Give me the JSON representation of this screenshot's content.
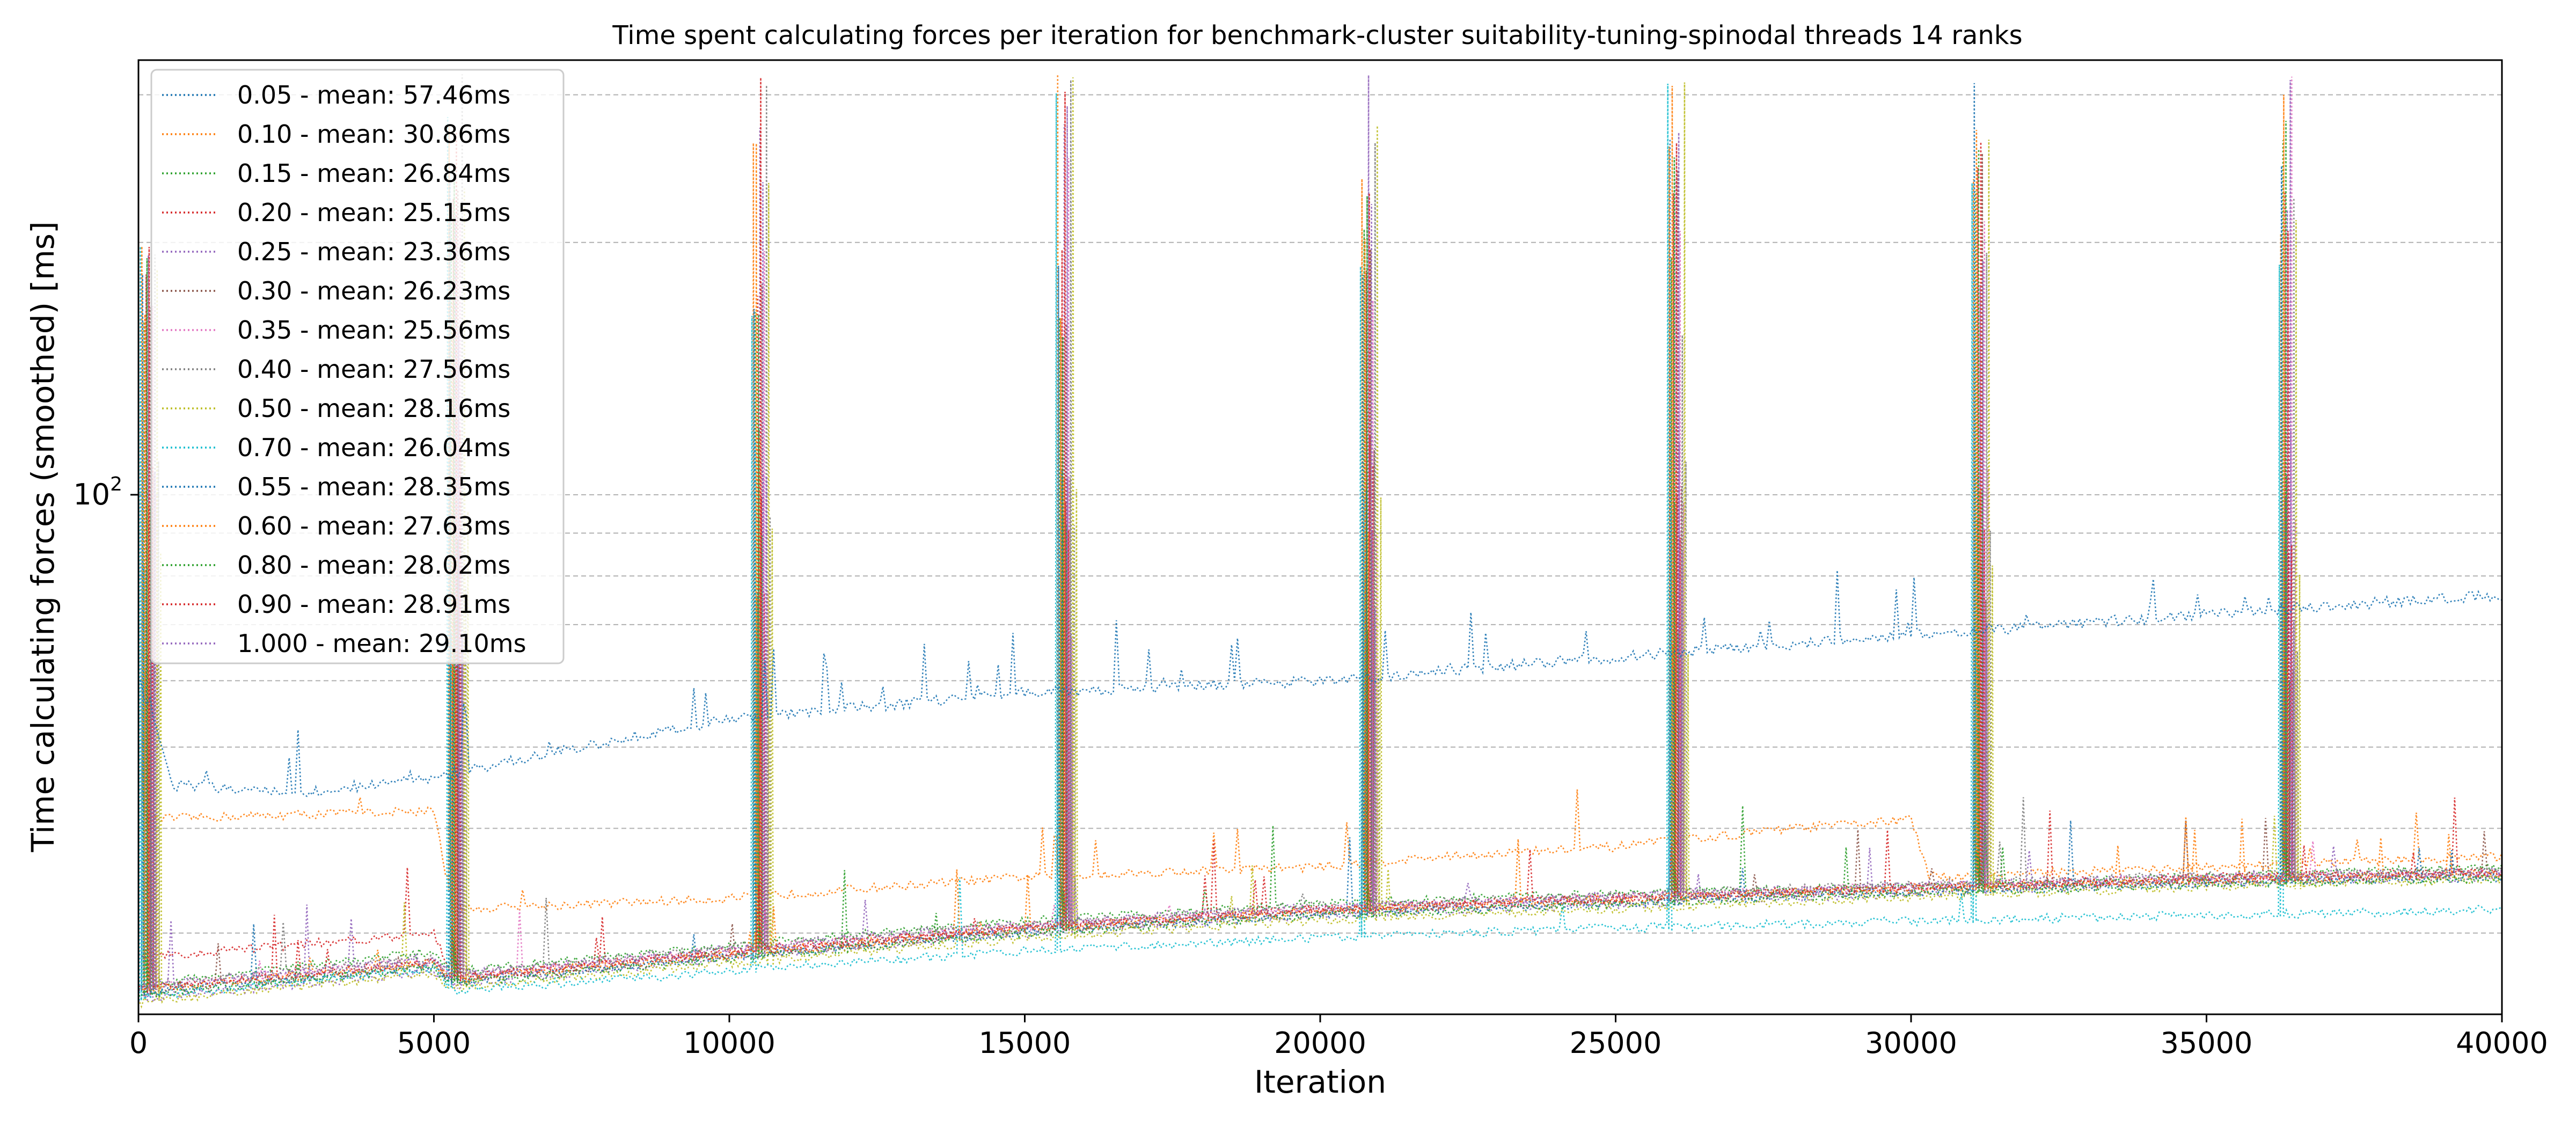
{
  "chart_data": {
    "type": "line",
    "title": "Time spent calculating forces per iteration for benchmark-cluster suitability-tuning-spinodal threads 14 ranks",
    "xlabel": "Iteration",
    "ylabel": "Time calculating forces (smoothed) [ms]",
    "xlim": [
      0,
      40000
    ],
    "ylim": [
      24,
      330
    ],
    "yscale": "log",
    "x_ticks": [
      0,
      5000,
      10000,
      15000,
      20000,
      25000,
      30000,
      35000,
      40000
    ],
    "x_tick_labels": [
      "0",
      "5000",
      "10000",
      "15000",
      "20000",
      "25000",
      "30000",
      "35000",
      "40000"
    ],
    "y_tick_label": {
      "base": "10",
      "exponent": "2",
      "value": 100
    },
    "grid": "y-dashed",
    "legend_location": "upper-left",
    "spike_iterations": [
      0,
      5200,
      10350,
      15500,
      20650,
      25850,
      31000,
      36200
    ],
    "series": [
      {
        "name": "0.05 - mean: 57.46ms",
        "color": "#1f77b4",
        "points": [
          [
            0,
            60
          ],
          [
            600,
            45
          ],
          [
            2600,
            44
          ],
          [
            5000,
            46
          ],
          [
            5600,
            47
          ],
          [
            10000,
            54
          ],
          [
            15000,
            58
          ],
          [
            20000,
            60
          ],
          [
            25000,
            64
          ],
          [
            30000,
            68
          ],
          [
            35000,
            72
          ],
          [
            40000,
            76
          ]
        ]
      },
      {
        "name": "0.10 - mean: 30.86ms",
        "color": "#ff7f0e",
        "points": [
          [
            0,
            41
          ],
          [
            5000,
            42
          ],
          [
            5300,
            32
          ],
          [
            10000,
            33
          ],
          [
            15000,
            35
          ],
          [
            20000,
            36
          ],
          [
            22000,
            37
          ],
          [
            25000,
            38
          ],
          [
            28000,
            40
          ],
          [
            30000,
            41
          ],
          [
            30300,
            35
          ],
          [
            35000,
            36
          ],
          [
            40000,
            37
          ]
        ]
      },
      {
        "name": "0.15 - mean: 26.84ms",
        "color": "#2ca02c",
        "points": [
          [
            0,
            26
          ],
          [
            5000,
            28.5
          ],
          [
            5300,
            27
          ],
          [
            10000,
            29
          ],
          [
            15000,
            31
          ],
          [
            20000,
            32.5
          ],
          [
            25000,
            33.5
          ],
          [
            30000,
            34
          ],
          [
            35000,
            35
          ],
          [
            40000,
            36
          ]
        ]
      },
      {
        "name": "0.20 - mean: 25.15ms",
        "color": "#d62728",
        "points": [
          [
            0,
            28
          ],
          [
            5000,
            30
          ],
          [
            5300,
            26.5
          ],
          [
            10000,
            28.5
          ],
          [
            15000,
            30.5
          ],
          [
            20000,
            32
          ],
          [
            25000,
            33
          ],
          [
            30000,
            34
          ],
          [
            35000,
            35
          ],
          [
            40000,
            35.5
          ]
        ]
      },
      {
        "name": "0.25 - mean: 23.36ms",
        "color": "#9467bd",
        "points": [
          [
            0,
            25
          ],
          [
            5000,
            27
          ],
          [
            5300,
            26
          ],
          [
            10000,
            28
          ],
          [
            15000,
            30
          ],
          [
            20000,
            31.5
          ],
          [
            25000,
            32.5
          ],
          [
            30000,
            33.5
          ],
          [
            35000,
            34.5
          ],
          [
            40000,
            35
          ]
        ]
      },
      {
        "name": "0.30 - mean: 26.23ms",
        "color": "#8c564b",
        "points": [
          [
            0,
            25.5
          ],
          [
            5000,
            27.5
          ],
          [
            5300,
            26.3
          ],
          [
            10000,
            28.2
          ],
          [
            15000,
            30.2
          ],
          [
            20000,
            31.8
          ],
          [
            25000,
            32.8
          ],
          [
            30000,
            33.8
          ],
          [
            35000,
            34.6
          ],
          [
            40000,
            35.2
          ]
        ]
      },
      {
        "name": "0.35 - mean: 25.56ms",
        "color": "#e377c2",
        "points": [
          [
            0,
            25.8
          ],
          [
            5000,
            27.8
          ],
          [
            5300,
            26.6
          ],
          [
            10000,
            28.6
          ],
          [
            15000,
            30.6
          ],
          [
            20000,
            32.1
          ],
          [
            25000,
            33.1
          ],
          [
            30000,
            34.1
          ],
          [
            35000,
            34.9
          ],
          [
            40000,
            35.4
          ]
        ]
      },
      {
        "name": "0.40 - mean: 27.56ms",
        "color": "#7f7f7f",
        "points": [
          [
            0,
            26
          ],
          [
            5000,
            28
          ],
          [
            5300,
            26.8
          ],
          [
            10000,
            28.8
          ],
          [
            15000,
            30.8
          ],
          [
            20000,
            32.3
          ],
          [
            25000,
            33.3
          ],
          [
            30000,
            34.3
          ],
          [
            35000,
            35.1
          ],
          [
            40000,
            35.6
          ]
        ]
      },
      {
        "name": "0.50 - mean: 28.16ms",
        "color": "#bcbd22",
        "points": [
          [
            0,
            24.8
          ],
          [
            5000,
            26.8
          ],
          [
            5300,
            25.8
          ],
          [
            10000,
            27.6
          ],
          [
            15000,
            29.6
          ],
          [
            20000,
            31.1
          ],
          [
            25000,
            32.1
          ],
          [
            30000,
            33.1
          ],
          [
            35000,
            34.1
          ],
          [
            40000,
            34.8
          ]
        ]
      },
      {
        "name": "0.70 - mean: 26.04ms",
        "color": "#17becf",
        "points": [
          [
            0,
            25.2
          ],
          [
            5000,
            27.2
          ],
          [
            5300,
            25.6
          ],
          [
            10000,
            27
          ],
          [
            15000,
            28.6
          ],
          [
            20000,
            29.6
          ],
          [
            25000,
            30.4
          ],
          [
            30000,
            31
          ],
          [
            35000,
            31.5
          ],
          [
            40000,
            32
          ]
        ]
      },
      {
        "name": "0.55 - mean: 28.35ms",
        "color": "#1f77b4",
        "points": [
          [
            0,
            25.4
          ],
          [
            5000,
            27.4
          ],
          [
            5300,
            26.2
          ],
          [
            10000,
            28.1
          ],
          [
            15000,
            30.1
          ],
          [
            20000,
            31.6
          ],
          [
            25000,
            32.6
          ],
          [
            30000,
            33.6
          ],
          [
            35000,
            34.4
          ],
          [
            40000,
            35
          ]
        ]
      },
      {
        "name": "0.60 - mean: 27.63ms",
        "color": "#ff7f0e",
        "points": [
          [
            0,
            25.6
          ],
          [
            5000,
            27.6
          ],
          [
            5300,
            26.4
          ],
          [
            10000,
            28.3
          ],
          [
            15000,
            30.3
          ],
          [
            20000,
            31.9
          ],
          [
            25000,
            32.9
          ],
          [
            30000,
            33.9
          ],
          [
            35000,
            34.7
          ],
          [
            40000,
            35.3
          ]
        ]
      },
      {
        "name": "0.80 - mean: 28.02ms",
        "color": "#2ca02c",
        "points": [
          [
            0,
            25.3
          ],
          [
            5000,
            27.3
          ],
          [
            5300,
            26.1
          ],
          [
            10000,
            28
          ],
          [
            15000,
            30
          ],
          [
            20000,
            31.5
          ],
          [
            25000,
            32.5
          ],
          [
            30000,
            33.5
          ],
          [
            35000,
            34.3
          ],
          [
            40000,
            34.9
          ]
        ]
      },
      {
        "name": "0.90 - mean: 28.91ms",
        "color": "#d62728",
        "points": [
          [
            0,
            25.7
          ],
          [
            5000,
            27.7
          ],
          [
            5300,
            26.5
          ],
          [
            10000,
            28.4
          ],
          [
            15000,
            30.4
          ],
          [
            20000,
            32
          ],
          [
            25000,
            33
          ],
          [
            30000,
            34
          ],
          [
            35000,
            34.8
          ],
          [
            40000,
            35.4
          ]
        ]
      },
      {
        "name": "1.000 - mean: 29.10ms",
        "color": "#9467bd",
        "points": [
          [
            0,
            25.9
          ],
          [
            5000,
            27.9
          ],
          [
            5300,
            26.7
          ],
          [
            10000,
            28.7
          ],
          [
            15000,
            30.7
          ],
          [
            20000,
            32.2
          ],
          [
            25000,
            33.2
          ],
          [
            30000,
            34.2
          ],
          [
            35000,
            35
          ],
          [
            40000,
            35.5
          ]
        ]
      }
    ]
  }
}
